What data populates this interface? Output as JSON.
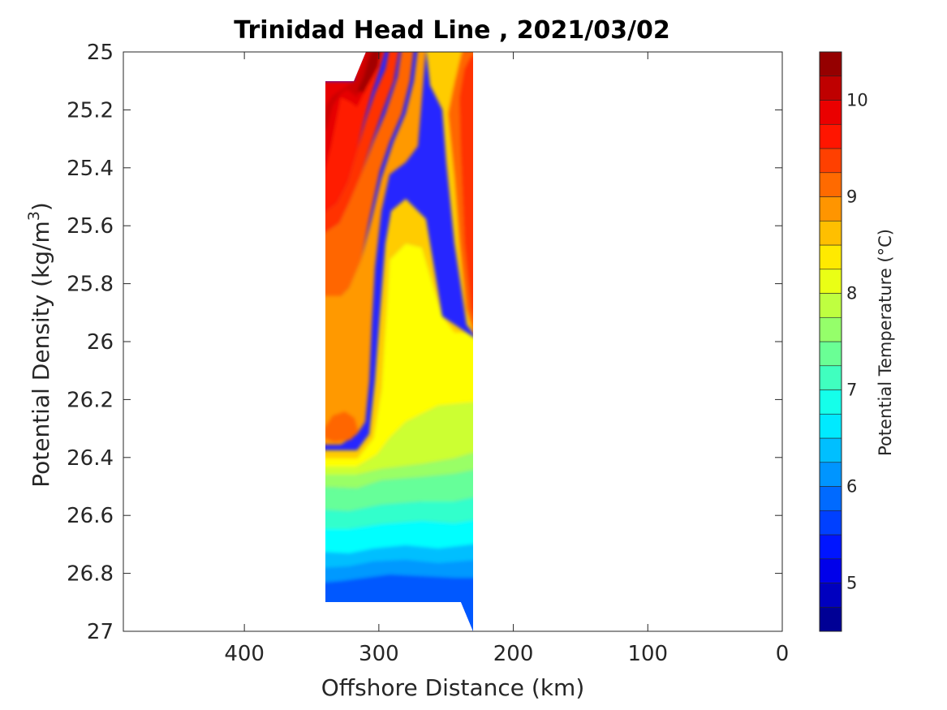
{
  "chart_data": {
    "type": "heatmap",
    "subtype": "filled-contour",
    "title": "Trinidad Head Line , 2021/03/02",
    "xlabel": "Offshore Distance (km)",
    "ylabel": "Potential Density (kg/m",
    "ylabel_superscript": "3",
    "ylabel_close": ")",
    "xlim": [
      490,
      0
    ],
    "x_reversed": true,
    "ylim": [
      25,
      27
    ],
    "y_reversed": true,
    "xticks": [
      "400",
      "300",
      "200",
      "100",
      "0"
    ],
    "xtick_values": [
      400,
      300,
      200,
      100,
      0
    ],
    "yticks": [
      "25",
      "25.2",
      "25.4",
      "25.6",
      "25.8",
      "26",
      "26.2",
      "26.4",
      "26.6",
      "26.8",
      "27"
    ],
    "ytick_values": [
      25,
      25.2,
      25.4,
      25.6,
      25.8,
      26,
      26.2,
      26.4,
      26.6,
      26.8,
      27
    ],
    "colorbar": {
      "label": "Potential Temperature (°C)",
      "range": [
        4.5,
        10.5
      ],
      "step": 0.25,
      "colormap": "jet",
      "ticks": [
        "5",
        "6",
        "7",
        "8",
        "9",
        "10"
      ],
      "tick_values": [
        5,
        6,
        7,
        8,
        9,
        10
      ]
    },
    "data_extent": {
      "x_range_km": [
        340,
        230
      ],
      "y_range": [
        25,
        27
      ]
    },
    "grid": false
  }
}
